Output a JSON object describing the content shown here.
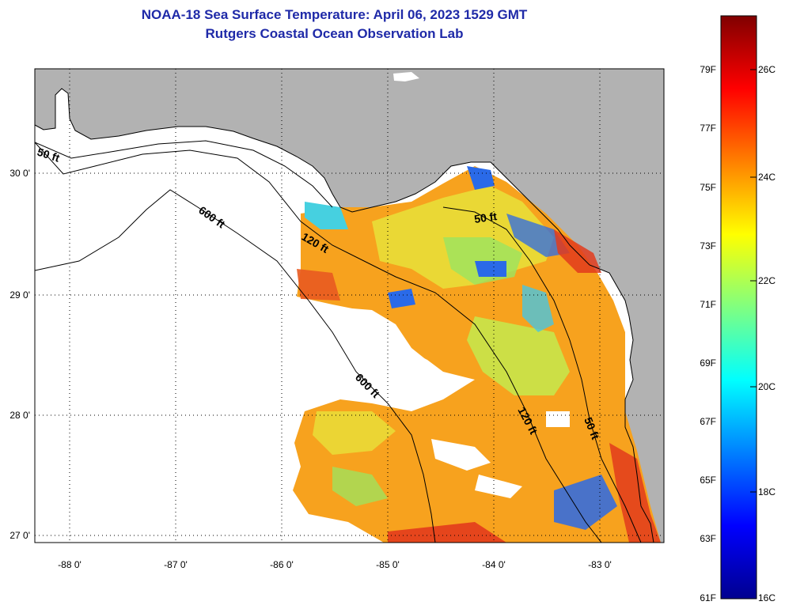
{
  "title": {
    "line1": "NOAA-18 Sea Surface Temperature:  April 06, 2023 1529 GMT",
    "line2": "Rutgers Coastal Ocean Observation Lab"
  },
  "axes": {
    "lon_ticks": [
      "-88 0'",
      "-87 0'",
      "-86 0'",
      "-85 0'",
      "-84 0'",
      "-83 0'"
    ],
    "lat_ticks": [
      "30 0'",
      "29 0'",
      "28 0'",
      "27 0'"
    ]
  },
  "isobaths": {
    "label_50": "50 ft",
    "label_120": "120 ft",
    "label_600": "600 ft"
  },
  "colorbar": {
    "fahrenheit": [
      "79F",
      "77F",
      "75F",
      "73F",
      "71F",
      "69F",
      "67F",
      "65F",
      "63F",
      "61F"
    ],
    "celsius": [
      "26C",
      "24C",
      "22C",
      "20C",
      "18C",
      "16C"
    ]
  },
  "colors": {
    "land": "#b2b2b2",
    "title": "#1f2aa8",
    "scale_low": "#00008f",
    "scale_high": "#800000"
  }
}
